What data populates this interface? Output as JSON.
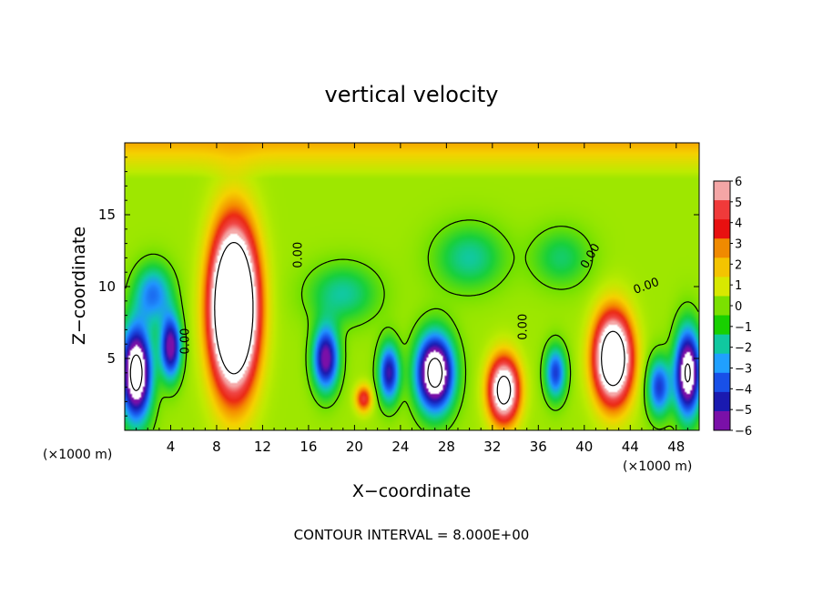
{
  "chart_data": {
    "type": "heatmap",
    "title": "vertical velocity",
    "xlabel": "X−coordinate",
    "ylabel": "Z−coordinate",
    "x_unit": "(×1000 m)",
    "x_unit_right": "(×1000 m)",
    "footer": "CONTOUR INTERVAL = 8.000E+00",
    "xlim": [
      0,
      50
    ],
    "ylim": [
      0,
      20
    ],
    "x_ticks": [
      "4",
      "8",
      "12",
      "16",
      "20",
      "24",
      "28",
      "32",
      "36",
      "40",
      "44",
      "48"
    ],
    "x_tick_values": [
      4,
      8,
      12,
      16,
      20,
      24,
      28,
      32,
      36,
      40,
      44,
      48
    ],
    "y_ticks": [
      "5",
      "10",
      "15"
    ],
    "y_tick_values": [
      5,
      10,
      15
    ],
    "colorbar": {
      "labels": [
        "6",
        "5",
        "4",
        "3",
        "2",
        "1",
        "0",
        "−1",
        "−2",
        "−3",
        "−4",
        "−5",
        "−6"
      ],
      "colors": [
        "#f4a6a6",
        "#f03a3a",
        "#e81010",
        "#f08a00",
        "#f4c400",
        "#d8e800",
        "#7be000",
        "#18d000",
        "#10c8a0",
        "#20a0ff",
        "#1850e8",
        "#1a1ab0",
        "#7a10a8"
      ],
      "range": [
        -6,
        6
      ]
    },
    "contour_labels": [
      "0.00",
      "0.00",
      "0.00",
      "0.00",
      "0.00"
    ],
    "features": [
      {
        "kind": "updraft",
        "x": 9.5,
        "z": 8.5,
        "sx": 1.9,
        "sz": 5.2,
        "w": 16
      },
      {
        "kind": "updraft",
        "x": 33,
        "z": 2.8,
        "sx": 1.3,
        "sz": 2.2,
        "w": 9
      },
      {
        "kind": "updraft",
        "x": 42.5,
        "z": 5.0,
        "sx": 1.6,
        "sz": 3.0,
        "w": 11
      },
      {
        "kind": "updraft",
        "x": 20.8,
        "z": 2.2,
        "sx": 0.7,
        "sz": 0.9,
        "w": 4
      },
      {
        "kind": "downdraft",
        "x": 1.0,
        "z": 4.0,
        "sx": 1.3,
        "sz": 3.2,
        "w": -10
      },
      {
        "kind": "downdraft",
        "x": 4.0,
        "z": 5.8,
        "sx": 0.9,
        "sz": 2.2,
        "w": -7
      },
      {
        "kind": "downdraft",
        "x": 27.0,
        "z": 4.0,
        "sx": 1.6,
        "sz": 2.6,
        "w": -10
      },
      {
        "kind": "downdraft",
        "x": 49.0,
        "z": 4.0,
        "sx": 1.1,
        "sz": 3.0,
        "w": -9
      },
      {
        "kind": "downdraft",
        "x": 17.5,
        "z": 5.0,
        "sx": 1.1,
        "sz": 2.2,
        "w": -7
      },
      {
        "kind": "downdraft",
        "x": 23.0,
        "z": 4.0,
        "sx": 0.9,
        "sz": 2.0,
        "w": -6
      },
      {
        "kind": "downdraft",
        "x": 2.5,
        "z": 9.5,
        "sx": 1.6,
        "sz": 2.0,
        "w": -4
      },
      {
        "kind": "downdraft",
        "x": 19.0,
        "z": 9.5,
        "sx": 3.0,
        "sz": 2.0,
        "w": -2.5
      },
      {
        "kind": "downdraft",
        "x": 30.0,
        "z": 12.0,
        "sx": 3.0,
        "sz": 2.2,
        "w": -2.5
      },
      {
        "kind": "downdraft",
        "x": 38.0,
        "z": 12.0,
        "sx": 2.5,
        "sz": 2.0,
        "w": -2.0
      },
      {
        "kind": "downdraft",
        "x": 37.5,
        "z": 4.0,
        "sx": 0.9,
        "sz": 1.8,
        "w": -5
      },
      {
        "kind": "downdraft",
        "x": 46.5,
        "z": 3.0,
        "sx": 1.0,
        "sz": 2.0,
        "w": -5
      }
    ]
  }
}
